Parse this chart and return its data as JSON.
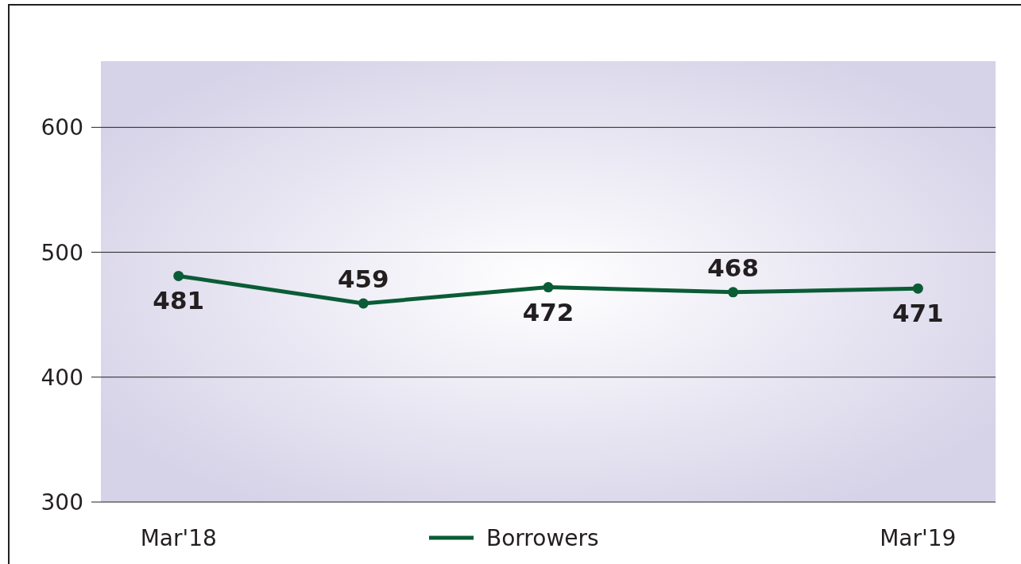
{
  "chart_data": {
    "type": "line",
    "categories": [
      "Mar'18",
      null,
      null,
      null,
      "Mar'19"
    ],
    "series": [
      {
        "name": "Borrowers",
        "color": "#0a5c36",
        "values": [
          481,
          459,
          472,
          468,
          471
        ]
      }
    ],
    "ylim": [
      300,
      653
    ],
    "yticks": [
      300,
      400,
      500,
      600
    ],
    "grid": "y",
    "legend": "bottom",
    "marker": "circle",
    "line_style": "solid",
    "data_labels": true
  }
}
